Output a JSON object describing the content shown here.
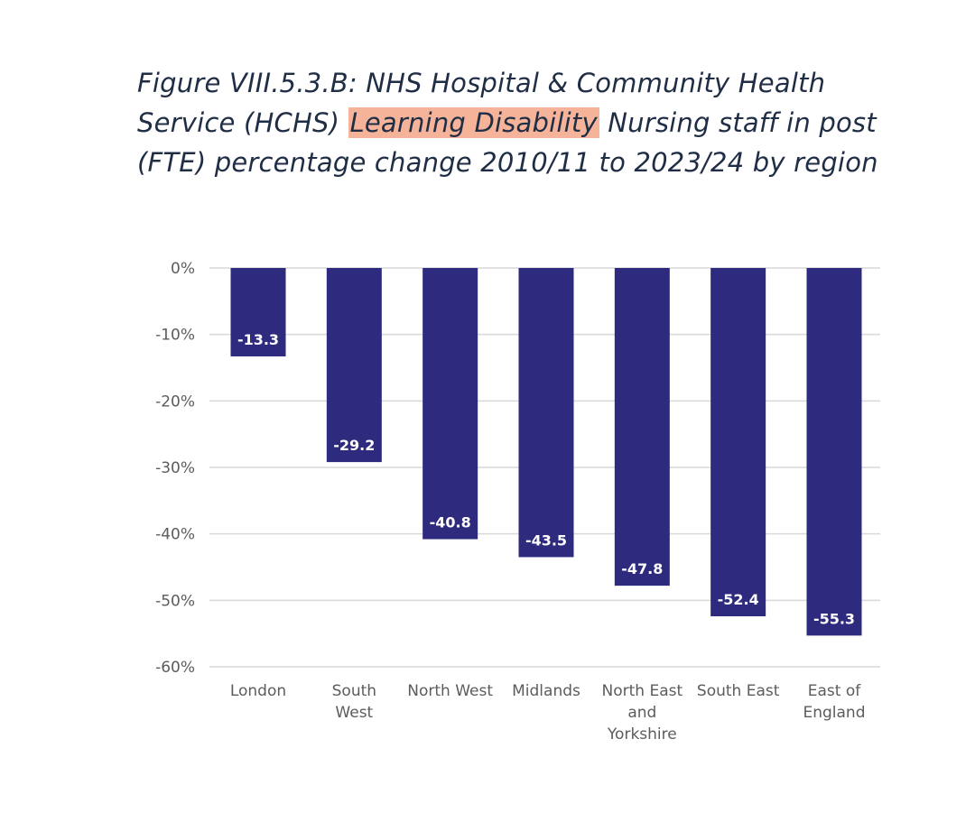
{
  "title": {
    "prefix": "Figure VIII.5.3.B: NHS Hospital & Community Health Service (HCHS) ",
    "highlight": "Learning Disability",
    "suffix": " Nursing staff in post (FTE) percentage change 2010/11 to 2023/24 by region"
  },
  "colors": {
    "bar": "#2e2a7e",
    "grid": "#d9d9d9",
    "highlight": "#f5b49a",
    "title": "#1f2d45"
  },
  "chart_data": {
    "type": "bar",
    "title": "Figure VIII.5.3.B: NHS Hospital & Community Health Service (HCHS) Learning Disability Nursing staff in post (FTE) percentage change 2010/11 to 2023/24 by region",
    "xlabel": "",
    "ylabel": "",
    "ylim": [
      -60,
      0
    ],
    "yticks": [
      0,
      -10,
      -20,
      -30,
      -40,
      -50,
      -60
    ],
    "ytick_labels": [
      "0%",
      "-10%",
      "-20%",
      "-30%",
      "-40%",
      "-50%",
      "-60%"
    ],
    "grid": true,
    "categories": [
      "London",
      "South West",
      "North West",
      "Midlands",
      "North East and Yorkshire",
      "South East",
      "East of England"
    ],
    "category_lines": [
      [
        "London"
      ],
      [
        "South",
        "West"
      ],
      [
        "North West"
      ],
      [
        "Midlands"
      ],
      [
        "North East",
        "and",
        "Yorkshire"
      ],
      [
        "South East"
      ],
      [
        "East of",
        "England"
      ]
    ],
    "values": [
      -13.3,
      -29.2,
      -40.8,
      -43.5,
      -47.8,
      -52.4,
      -55.3
    ],
    "value_labels": [
      "-13.3",
      "-29.2",
      "-40.8",
      "-43.5",
      "-47.8",
      "-52.4",
      "-55.3"
    ]
  }
}
